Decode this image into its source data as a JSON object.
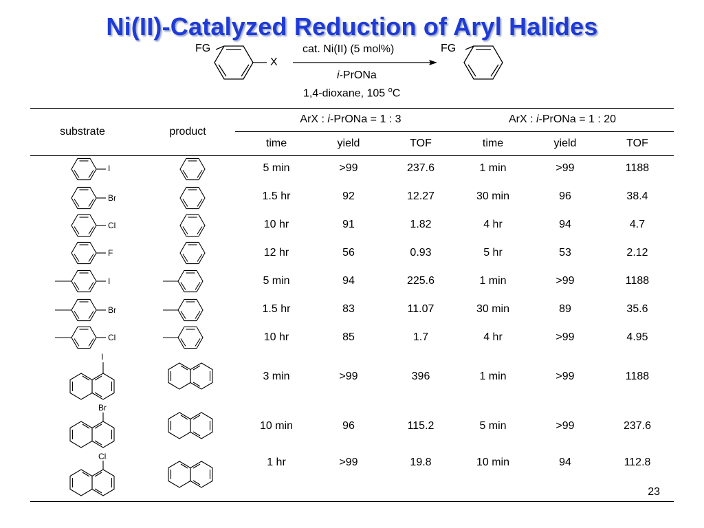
{
  "slide": {
    "title": "Ni(II)-Catalyzed Reduction of Aryl Halides",
    "page_number": "23",
    "title_color": "#1f3bd6"
  },
  "scheme": {
    "reactant_fg": "FG",
    "reactant_x": "X",
    "product_fg": "FG",
    "above_arrow": "cat. Ni(II) (5 mol%)",
    "reagent_italic": "i",
    "reagent_rest": "-PrONa",
    "conditions_pre": "1,4-dioxane, 105 ",
    "conditions_sup": "o",
    "conditions_post": "C"
  },
  "table": {
    "col_substrate": "substrate",
    "col_product": "product",
    "group1_pre": "ArX : ",
    "group1_italic": "i",
    "group1_post": "-PrONa = 1 : 3",
    "group2_pre": "ArX : ",
    "group2_italic": "i",
    "group2_post": "-PrONa = 1 : 20",
    "sub_time": "time",
    "sub_yield": "yield",
    "sub_tof": "TOF",
    "rows": [
      {
        "sub_label": "I",
        "t1": "5 min",
        "y1": ">99",
        "tof1": "237.6",
        "t2": "1 min",
        "y2": ">99",
        "tof2": "1188"
      },
      {
        "sub_label": "Br",
        "t1": "1.5 hr",
        "y1": "92",
        "tof1": "12.27",
        "t2": "30 min",
        "y2": "96",
        "tof2": "38.4"
      },
      {
        "sub_label": "Cl",
        "t1": "10 hr",
        "y1": "91",
        "tof1": "1.82",
        "t2": "4 hr",
        "y2": "94",
        "tof2": "4.7"
      },
      {
        "sub_label": "F",
        "t1": "12 hr",
        "y1": "56",
        "tof1": "0.93",
        "t2": "5 hr",
        "y2": "53",
        "tof2": "2.12"
      },
      {
        "sub_label": "I",
        "t1": "5 min",
        "y1": "94",
        "tof1": "225.6",
        "t2": "1 min",
        "y2": ">99",
        "tof2": "1188"
      },
      {
        "sub_label": "Br",
        "t1": "1.5 hr",
        "y1": "83",
        "tof1": "11.07",
        "t2": "30 min",
        "y2": "89",
        "tof2": "35.6"
      },
      {
        "sub_label": "Cl",
        "t1": "10 hr",
        "y1": "85",
        "tof1": "1.7",
        "t2": "4 hr",
        "y2": ">99",
        "tof2": "4.95"
      },
      {
        "sub_label": "I",
        "t1": "3 min",
        "y1": ">99",
        "tof1": "396",
        "t2": "1 min",
        "y2": ">99",
        "tof2": "1188"
      },
      {
        "sub_label": "Br",
        "t1": "10 min",
        "y1": "96",
        "tof1": "115.2",
        "t2": "5 min",
        "y2": ">99",
        "tof2": "237.6"
      },
      {
        "sub_label": "Cl",
        "t1": "1 hr",
        "y1": ">99",
        "tof1": "19.8",
        "t2": "10 min",
        "y2": "94",
        "tof2": "112.8"
      }
    ]
  }
}
